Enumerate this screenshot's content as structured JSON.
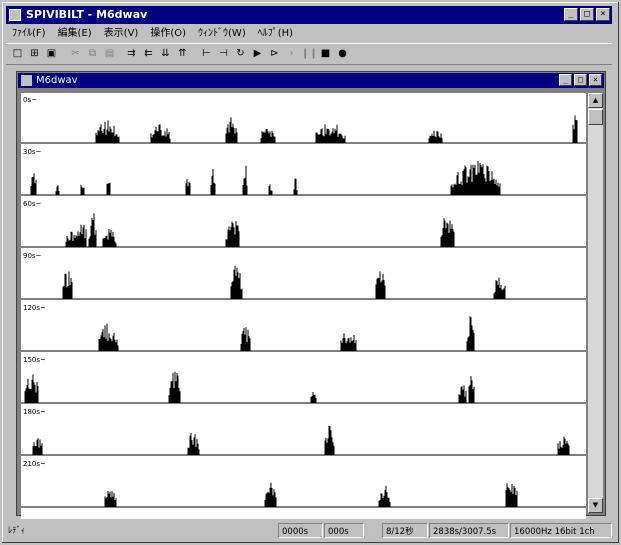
{
  "window": {
    "title": "SPIVIBILT - M6dwav"
  },
  "menu": [
    "ﾌｧｲﾙ(F)",
    "編集(E)",
    "表示(V)",
    "操作(O)",
    "ｳｨﾝﾄﾞｳ(W)",
    "ﾍﾙﾌﾟ(H)"
  ],
  "child": {
    "title": "M6dwav"
  },
  "tracks": [
    {
      "label": "0s~"
    },
    {
      "label": "30s~"
    },
    {
      "label": "60s~"
    },
    {
      "label": "90s~"
    },
    {
      "label": "120s~"
    },
    {
      "label": "150s~"
    },
    {
      "label": "180s~"
    },
    {
      "label": "210s~"
    }
  ],
  "status": {
    "left": "ﾚﾃﾞｨ",
    "f1": "0000s",
    "f2": "000s",
    "f3": "8/12秒",
    "f4": "2838s/3007.5s",
    "f5": "16000Hz 16bit 1ch"
  }
}
